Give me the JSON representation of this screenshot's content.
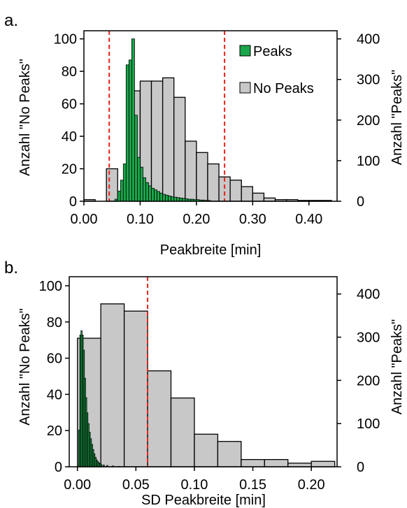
{
  "chart_data": [
    {
      "panel_label": "a.",
      "type": "bar",
      "xlabel": "Peakbreite [min]",
      "ylabel_left": "Anzahl \"No Peaks\"",
      "ylabel_right": "Anzahl \"Peaks\"",
      "xlim": [
        0.0,
        0.45
      ],
      "ylim_left": [
        0,
        105
      ],
      "ylim_right": [
        0,
        420
      ],
      "x_ticks": [
        0.0,
        0.1,
        0.2,
        0.3,
        0.4
      ],
      "x_tick_labels": [
        "0.00",
        "0.10",
        "0.20",
        "0.30",
        "0.40"
      ],
      "y_left_ticks": [
        0,
        20,
        40,
        60,
        80,
        100
      ],
      "y_right_ticks": [
        0,
        100,
        200,
        300,
        400
      ],
      "reference_lines": [
        0.045,
        0.25
      ],
      "legend_position": "top-right",
      "series": [
        {
          "name": "No Peaks",
          "axis": "left",
          "color": "#c8c8c8",
          "bin_width": 0.02,
          "bins_start": [
            0.0,
            0.04,
            0.08,
            0.1,
            0.12,
            0.14,
            0.16,
            0.18,
            0.2,
            0.22,
            0.24,
            0.26,
            0.28,
            0.3,
            0.32,
            0.34,
            0.36,
            0.38,
            0.4,
            0.42
          ],
          "values": [
            1,
            20,
            68,
            74,
            74,
            76,
            64,
            37,
            30,
            23,
            15,
            13,
            9,
            5,
            2,
            1,
            1,
            0.5,
            0.5,
            0.5
          ]
        },
        {
          "name": "Peaks",
          "axis": "right",
          "color": "#1aa64a",
          "bin_width": 0.005,
          "bins_start": [
            0.055,
            0.06,
            0.065,
            0.07,
            0.075,
            0.08,
            0.085,
            0.09,
            0.095,
            0.1,
            0.105,
            0.11,
            0.115,
            0.12,
            0.125,
            0.13,
            0.135,
            0.14,
            0.145,
            0.15,
            0.155,
            0.16,
            0.165,
            0.17,
            0.175,
            0.18,
            0.185,
            0.19,
            0.195,
            0.2,
            0.205,
            0.21,
            0.215,
            0.22
          ],
          "values": [
            5,
            25,
            52,
            92,
            336,
            348,
            400,
            212,
            108,
            84,
            58,
            46,
            38,
            32,
            28,
            24,
            20,
            17,
            15,
            13,
            11,
            10,
            9,
            8,
            7,
            6,
            5,
            5,
            4,
            4,
            3,
            3,
            2,
            2
          ]
        }
      ]
    },
    {
      "panel_label": "b.",
      "type": "bar",
      "xlabel": "SD Peakbreite [min]",
      "ylabel_left": "Anzahl \"No Peaks\"",
      "ylabel_right": "Anzahl \"Peaks\"",
      "xlim": [
        -0.007,
        0.222
      ],
      "ylim_left": [
        0,
        105
      ],
      "ylim_right": [
        0,
        440
      ],
      "x_ticks": [
        0.0,
        0.05,
        0.1,
        0.15,
        0.2
      ],
      "x_tick_labels": [
        "0.00",
        "0.05",
        "0.10",
        "0.15",
        "0.20"
      ],
      "y_left_ticks": [
        0,
        20,
        40,
        60,
        80,
        100
      ],
      "y_right_ticks": [
        0,
        100,
        200,
        300,
        400
      ],
      "reference_lines": [
        0.06
      ],
      "series": [
        {
          "name": "No Peaks",
          "axis": "left",
          "color": "#c8c8c8",
          "bin_width": 0.02,
          "bins_start": [
            0.0,
            0.02,
            0.04,
            0.06,
            0.08,
            0.1,
            0.12,
            0.14,
            0.16,
            0.18,
            0.2
          ],
          "values": [
            71,
            90,
            86,
            53,
            38,
            18,
            14,
            4,
            4,
            2,
            3
          ]
        },
        {
          "name": "Peaks",
          "axis": "right",
          "color": "#1aa64a",
          "bin_width": 0.001,
          "bins_start": [
            0.001,
            0.002,
            0.003,
            0.004,
            0.005,
            0.006,
            0.007,
            0.008,
            0.009,
            0.01,
            0.011,
            0.012,
            0.013,
            0.014,
            0.015,
            0.016,
            0.017,
            0.018,
            0.019,
            0.02,
            0.022,
            0.025,
            0.03,
            0.035
          ],
          "values": [
            85,
            305,
            315,
            305,
            270,
            205,
            160,
            125,
            100,
            80,
            65,
            52,
            40,
            30,
            22,
            16,
            12,
            9,
            7,
            5,
            4,
            3,
            2,
            1
          ]
        }
      ]
    }
  ]
}
